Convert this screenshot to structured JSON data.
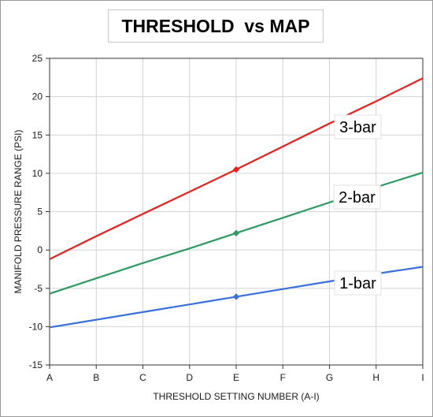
{
  "chart_data": {
    "type": "line",
    "title": "THRESHOLD  vs MAP",
    "xlabel": "THRESHOLD SETTING NUMBER (A-I)",
    "ylabel": "MANIFOLD PRESSURE RANGE (PSI)",
    "categories": [
      "A",
      "B",
      "C",
      "D",
      "E",
      "F",
      "G",
      "H",
      "I"
    ],
    "ylim": [
      -15,
      25
    ],
    "yticks": [
      -15,
      -10,
      -5,
      0,
      5,
      10,
      15,
      20,
      25
    ],
    "grid": true,
    "series": [
      {
        "name": "3-bar",
        "color": "#e8201c",
        "values": [
          -1.2,
          1.8,
          4.7,
          7.6,
          10.5,
          13.5,
          16.5,
          19.4,
          22.4
        ],
        "marker_at": "E"
      },
      {
        "name": "2-bar",
        "color": "#2e9a62",
        "values": [
          -5.7,
          -3.7,
          -1.7,
          0.2,
          2.2,
          4.2,
          6.2,
          8.2,
          10.1
        ],
        "marker_at": "E"
      },
      {
        "name": "1-bar",
        "color": "#3a6fdc",
        "values": [
          -10.1,
          -9.1,
          -8.1,
          -7.1,
          -6.1,
          -5.1,
          -4.1,
          -3.1,
          -2.2
        ],
        "marker_at": "E"
      }
    ]
  }
}
